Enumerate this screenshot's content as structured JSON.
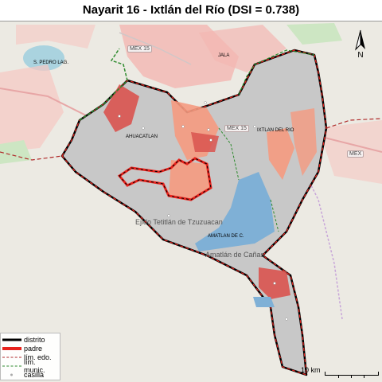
{
  "title": "Nayarit 16 - Ixtlán del Río (DSI = 0.738)",
  "legend": {
    "items": [
      {
        "key": "distrito",
        "label": "distrito"
      },
      {
        "key": "padre",
        "label": "padre"
      },
      {
        "key": "edo",
        "label": "lím. edo."
      },
      {
        "key": "munic",
        "label": "lím. munic."
      },
      {
        "key": "casilla",
        "label": "casilla"
      }
    ]
  },
  "scalebar": {
    "label": "10 km"
  },
  "north_arrow": {
    "label": "N"
  },
  "places": {
    "ahuacatlan": "AHUACATLAN",
    "ixtlan": "IXTLAN DEL RIO",
    "jala": "JALA",
    "amatlan": "AMATLAN DE C.",
    "san_pedro": "S. PEDRO LAG.",
    "ejido": "Ejido Tetitlán de Tzuzuacan",
    "amatlan_base": "Amatlán de Cañas"
  },
  "roads": {
    "mex15_north": "MEX 15",
    "mex15_mid": "MEX 15",
    "mex_east": "MEX"
  },
  "colors": {
    "distrito": "#000000",
    "padre": "#e8231d",
    "lim_edo": "#b02a2a",
    "lim_munic": "#2e8b2e",
    "region_gray": "#c8c8c8",
    "red_dark": "#d9534f",
    "red_light": "#f59a80",
    "blue": "#7fb0d6"
  }
}
